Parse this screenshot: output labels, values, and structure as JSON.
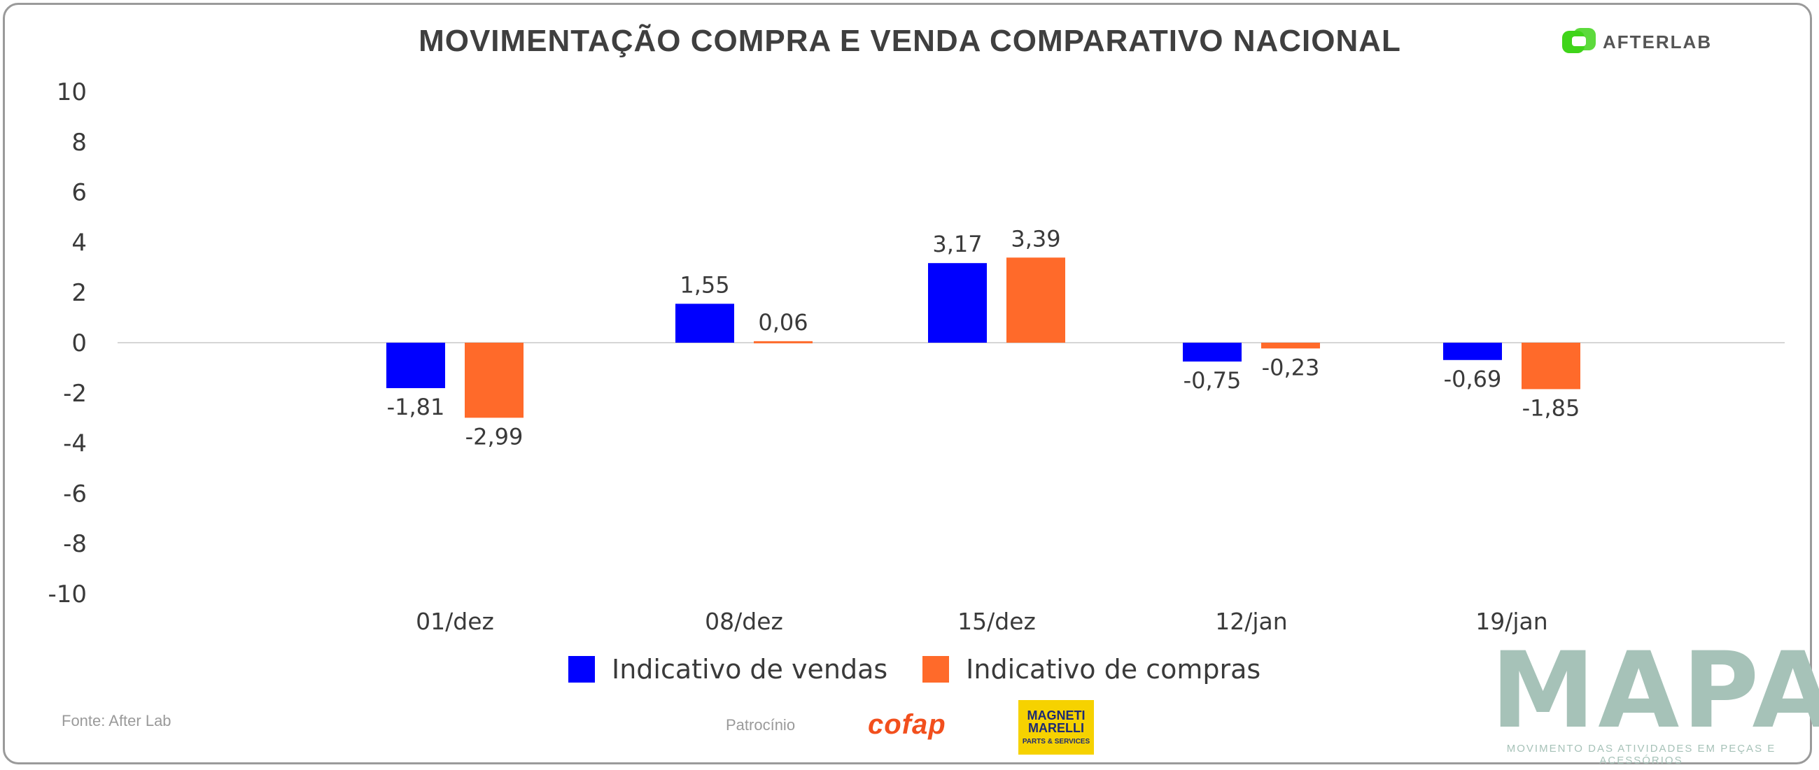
{
  "title": "MOVIMENTAÇÃO COMPRA E VENDA COMPARATIVO NACIONAL",
  "brand": {
    "name": "AFTERLAB",
    "color": "#3fd41a"
  },
  "source": "Fonte: After Lab",
  "sponsor_label": "Patrocínio",
  "sponsors": {
    "cofap": "cofap",
    "magneti_line1": "MAGNETI",
    "magneti_line2": "MARELLI",
    "magneti_line3": "PARTS & SERVICES"
  },
  "mapa": {
    "title": "MAPA",
    "subtitle": "MOVIMENTO DAS ATIVIDADES EM PEÇAS E ACESSÓRIOS"
  },
  "colors": {
    "vendas": "#0000ff",
    "compras": "#ff6a2a"
  },
  "chart_data": {
    "type": "bar",
    "title": "MOVIMENTAÇÃO COMPRA E VENDA COMPARATIVO NACIONAL",
    "categories": [
      "01/dez",
      "08/dez",
      "15/dez",
      "12/jan",
      "19/jan"
    ],
    "series": [
      {
        "name": "Indicativo de vendas",
        "values": [
          -1.81,
          1.55,
          3.17,
          -0.75,
          -0.69
        ],
        "labels": [
          "-1,81",
          "1,55",
          "3,17",
          "-0,75",
          "-0,69"
        ]
      },
      {
        "name": "Indicativo de compras",
        "values": [
          -2.99,
          0.06,
          3.39,
          -0.23,
          -1.85
        ],
        "labels": [
          "-2,99",
          "0,06",
          "3,39",
          "-0,23",
          "-1,85"
        ]
      }
    ],
    "ylim": [
      -10,
      10
    ],
    "yticks": [
      10,
      8,
      6,
      4,
      2,
      0,
      -2,
      -4,
      -6,
      -8,
      -10
    ],
    "legend_position": "bottom",
    "grid": false
  }
}
